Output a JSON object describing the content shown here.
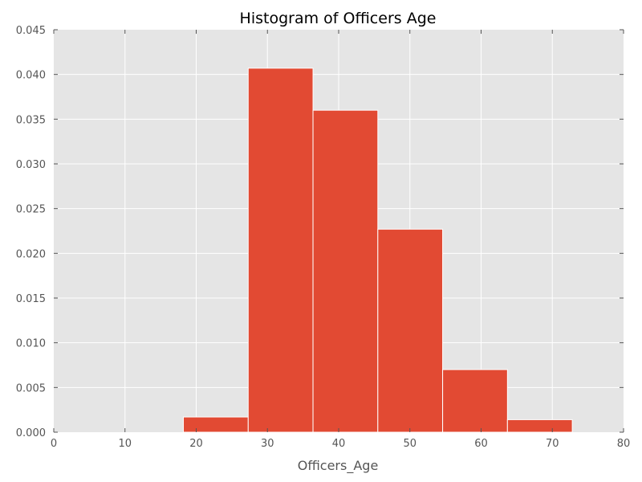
{
  "chart_data": {
    "type": "bar",
    "title": "Histogram of Officers Age",
    "xlabel": "Officers_Age",
    "ylabel": "",
    "xlim": [
      0,
      80
    ],
    "ylim": [
      0,
      0.045
    ],
    "x_ticks": [
      0,
      10,
      20,
      30,
      40,
      50,
      60,
      70,
      80
    ],
    "x_tick_labels": [
      "0",
      "10",
      "20",
      "30",
      "40",
      "50",
      "60",
      "70",
      "80"
    ],
    "y_ticks": [
      0,
      0.005,
      0.01,
      0.015,
      0.02,
      0.025,
      0.03,
      0.035,
      0.04,
      0.045
    ],
    "y_tick_labels": [
      "0.000",
      "0.005",
      "0.010",
      "0.015",
      "0.020",
      "0.025",
      "0.030",
      "0.035",
      "0.040",
      "0.045"
    ],
    "bins": [
      {
        "start": 18.2,
        "end": 27.3,
        "value": 0.0017
      },
      {
        "start": 27.3,
        "end": 36.4,
        "value": 0.0407
      },
      {
        "start": 36.4,
        "end": 45.5,
        "value": 0.036
      },
      {
        "start": 45.5,
        "end": 54.6,
        "value": 0.0227
      },
      {
        "start": 54.6,
        "end": 63.7,
        "value": 0.007
      },
      {
        "start": 63.7,
        "end": 72.8,
        "value": 0.0014
      }
    ],
    "grid": true,
    "legend": "none",
    "colors": {
      "bar": "#E24A33",
      "plot_background": "#E5E5E5",
      "grid": "#FFFFFF",
      "text": "#555555"
    }
  }
}
